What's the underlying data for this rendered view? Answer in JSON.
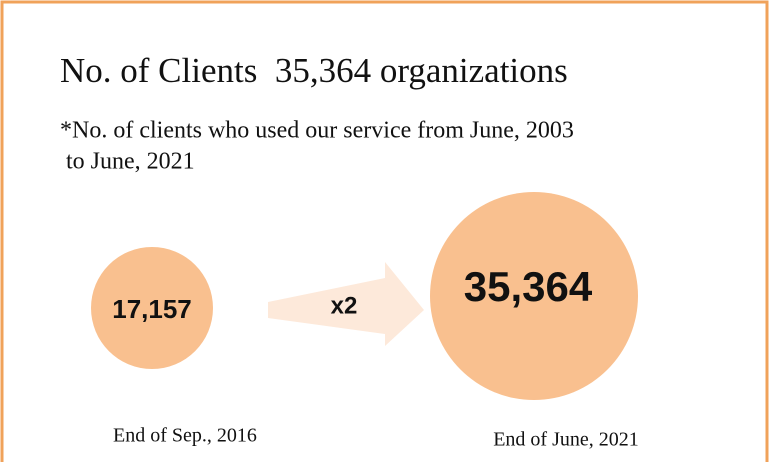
{
  "title": "No. of Clients  35,364 organizations",
  "note": [
    "*No. of clients who used our service from June, 2003",
    " to June, 2021"
  ],
  "items": [
    {
      "value": "17,157",
      "caption": "End of Sep., 2016"
    },
    {
      "value": "35,364",
      "caption": "End of June, 2021"
    }
  ],
  "arrow_label": "x2"
}
